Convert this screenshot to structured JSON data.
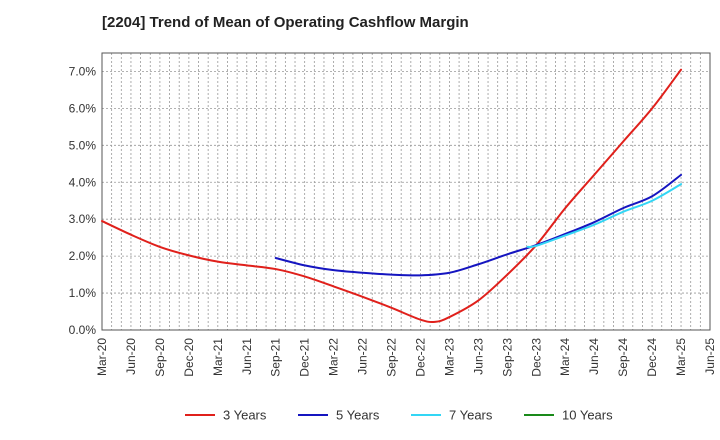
{
  "chart_data": {
    "type": "line",
    "title": "[2204]  Trend of Mean of Operating Cashflow Margin",
    "xlabel": "",
    "ylabel": "",
    "ylim": [
      0,
      7.5
    ],
    "yticks": [
      0,
      1,
      2,
      3,
      4,
      5,
      6,
      7
    ],
    "ytick_labels": [
      "0.0%",
      "1.0%",
      "2.0%",
      "3.0%",
      "4.0%",
      "5.0%",
      "6.0%",
      "7.0%"
    ],
    "xlim": [
      0,
      21
    ],
    "xtick_labels": [
      "Mar-20",
      "Jun-20",
      "Sep-20",
      "Dec-20",
      "Mar-21",
      "Jun-21",
      "Sep-21",
      "Dec-21",
      "Mar-22",
      "Jun-22",
      "Sep-22",
      "Dec-22",
      "Mar-23",
      "Jun-23",
      "Sep-23",
      "Dec-23",
      "Mar-24",
      "Jun-24",
      "Sep-24",
      "Dec-24",
      "Mar-25",
      "Jun-25"
    ],
    "grid": true,
    "legend_position": "bottom",
    "series": [
      {
        "name": "3 Years",
        "color": "#e0201b",
        "x": [
          0,
          1,
          2,
          3,
          4,
          5,
          6,
          7,
          8,
          9,
          10,
          11,
          11.5,
          12,
          13,
          14,
          15,
          16,
          17,
          18,
          19,
          20
        ],
        "values": [
          2.95,
          2.58,
          2.25,
          2.02,
          1.85,
          1.75,
          1.65,
          1.45,
          1.18,
          0.9,
          0.6,
          0.28,
          0.22,
          0.35,
          0.8,
          1.5,
          2.3,
          3.3,
          4.2,
          5.1,
          6.0,
          7.05
        ]
      },
      {
        "name": "5 Years",
        "color": "#1515c0",
        "x": [
          6,
          7,
          8,
          9,
          10,
          11,
          12,
          13,
          14,
          15,
          16,
          17,
          18,
          19,
          20
        ],
        "values": [
          1.95,
          1.75,
          1.62,
          1.55,
          1.5,
          1.48,
          1.55,
          1.78,
          2.05,
          2.3,
          2.6,
          2.92,
          3.3,
          3.62,
          4.2
        ]
      },
      {
        "name": "7 Years",
        "color": "#33d6f5",
        "x": [
          14.7,
          15,
          16,
          17,
          18,
          19,
          20
        ],
        "values": [
          2.25,
          2.28,
          2.56,
          2.85,
          3.2,
          3.5,
          3.95
        ]
      },
      {
        "name": "10 Years",
        "color": "#1a8a1a",
        "x": [],
        "values": []
      }
    ]
  }
}
